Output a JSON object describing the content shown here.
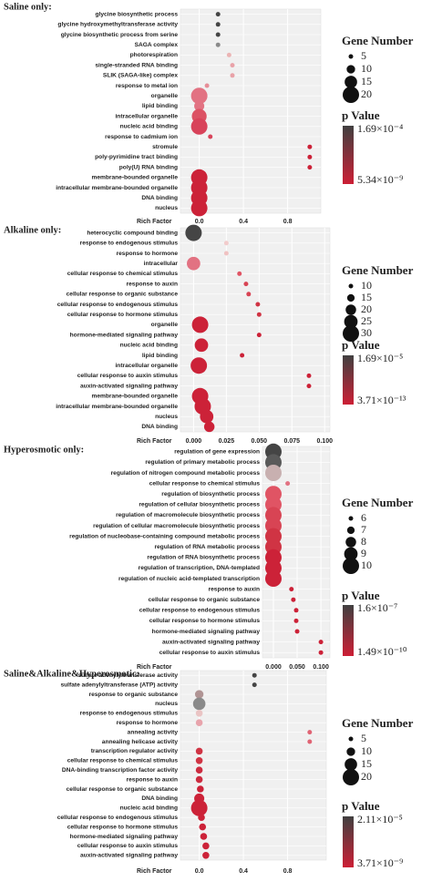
{
  "chart_data": [
    {
      "type": "scatter",
      "title": "Saline only:",
      "categories": [
        "glycine biosynthetic process",
        "glycine hydroxymethyltransferase activity",
        "glycine biosynthetic process from serine",
        "SAGA complex",
        "photorespiration",
        "single-stranded RNA binding",
        "SLIK (SAGA-like) complex",
        "response to metal ion",
        "organelle",
        "lipid binding",
        "intracellular organelle",
        "nucleic acid binding",
        "response to cadmium ion",
        "stromule",
        "poly-pyrimidine tract binding",
        "poly(U) RNA binding",
        "membrane-bounded organelle",
        "intracellular membrane-bounded organelle",
        "DNA binding",
        "nucleus"
      ],
      "values": [
        0.17,
        0.17,
        0.17,
        0.17,
        0.27,
        0.3,
        0.3,
        0.07,
        0.0,
        0.0,
        0.0,
        0.0,
        0.1,
        1.0,
        1.0,
        1.0,
        0.0,
        0.0,
        0.0,
        0.0
      ],
      "sizes": [
        5,
        5,
        5,
        5,
        5,
        5,
        5,
        5,
        20,
        12,
        18,
        20,
        5,
        5,
        5,
        5,
        20,
        20,
        20,
        20
      ],
      "colors": [
        "#454545",
        "#454545",
        "#454545",
        "#8a8a8a",
        "#ebb4b4",
        "#e9a2a8",
        "#e9a2a8",
        "#e68e98",
        "#e27282",
        "#e27282",
        "#dc5264",
        "#d8435a",
        "#d8435a",
        "#cc2238",
        "#cc2238",
        "#cc2238",
        "#cc2238",
        "#cc2238",
        "#cc2238",
        "#cc2238"
      ],
      "x_label": "Rich Factor",
      "xlim": [
        -0.17,
        1.1
      ],
      "xticks": [
        {
          "value": 0.0,
          "label": "0.0"
        },
        0.4,
        0.8
      ],
      "grid": true,
      "size_legend": {
        "title": "Gene Number",
        "values": [
          5,
          10,
          15,
          20
        ]
      },
      "color_legend": {
        "title": "p Value",
        "labels": [
          "1.69×10⁻⁴",
          "5.34×10⁻⁹"
        ],
        "colors": [
          "#404040",
          "#cc1f35"
        ]
      }
    },
    {
      "type": "scatter",
      "title": "Alkaline only:",
      "categories": [
        "heterocyclic compound binding",
        "response to endogenous stimulus",
        "response to hormone",
        "intracellular",
        "cellular response to chemical stimulus",
        "response to auxin",
        "cellular response to organic substance",
        "cellular response to endogenous stimulus",
        "cellular response to hormone stimulus",
        "organelle",
        "hormone-mediated signaling pathway",
        "nucleic acid binding",
        "lipid binding",
        "intracellular organelle",
        "cellular response to auxin stimulus",
        "auxin-activated signaling pathway",
        "membrane-bounded organelle",
        "intracellular membrane-bounded organelle",
        "nucleus",
        "DNA binding"
      ],
      "values": [
        0.0,
        0.025,
        0.025,
        0.0,
        0.035,
        0.04,
        0.042,
        0.049,
        0.05,
        0.005,
        0.05,
        0.006,
        0.037,
        0.004,
        0.088,
        0.088,
        0.005,
        0.007,
        0.01,
        0.012
      ],
      "sizes": [
        30,
        10,
        10,
        25,
        10,
        10,
        10,
        10,
        10,
        30,
        10,
        25,
        10,
        30,
        10,
        10,
        30,
        30,
        25,
        20
      ],
      "colors": [
        "#454545",
        "#f2cccc",
        "#f0c2c2",
        "#e27282",
        "#e05464",
        "#d84454",
        "#d84454",
        "#d03444",
        "#d03444",
        "#cc2238",
        "#cc2238",
        "#cc2238",
        "#cc2238",
        "#cc2238",
        "#cc2238",
        "#cc2238",
        "#cc2238",
        "#cc2238",
        "#cc2238",
        "#cc2238"
      ],
      "x_label": "Rich Factor",
      "xlim": [
        -0.01,
        0.104
      ],
      "xticks": [
        {
          "value": 0.0,
          "label": "0.000"
        },
        0.025,
        {
          "value": 0.05,
          "label": "0.050"
        },
        0.075,
        {
          "value": 0.1,
          "label": "0.100"
        }
      ],
      "grid": true,
      "size_legend": {
        "title": "Gene Number",
        "values": [
          10,
          15,
          20,
          25,
          30
        ]
      },
      "color_legend": {
        "title": "p Value",
        "labels": [
          "1.69×10⁻⁵",
          "3.71×10⁻¹³"
        ],
        "colors": [
          "#404040",
          "#cc1f35"
        ]
      }
    },
    {
      "type": "scatter",
      "title": "Hyperosmotic only:",
      "categories": [
        "regulation of gene expression",
        "regulation of primary metabolic process",
        "regulation of nitrogen compound metabolic process",
        "cellular response to chemical stimulus",
        "regulation of biosynthetic process",
        "regulation of cellular biosynthetic process",
        "regulation of macromolecule biosynthetic process",
        "regulation of cellular macromolecule biosynthetic process",
        "regulation of nucleobase-containing compound metabolic process",
        "regulation of RNA metabolic process",
        "regulation of RNA biosynthetic process",
        "regulation of transcription, DNA-templated",
        "regulation of nucleic acid-templated transcription",
        "response to auxin",
        "cellular response to organic substance",
        "cellular response to endogenous stimulus",
        "cellular response to hormone stimulus",
        "hormone-mediated signaling pathway",
        "auxin-activated signaling pathway",
        "cellular response to auxin stimulus"
      ],
      "values": [
        0.0,
        0.0,
        0.0,
        0.03,
        0.0,
        0.0,
        0.0,
        0.0,
        0.0,
        0.0,
        0.0,
        0.0,
        0.0,
        0.038,
        0.042,
        0.048,
        0.048,
        0.05,
        0.1,
        0.1
      ],
      "sizes": [
        10,
        10,
        10,
        6,
        10,
        10,
        10,
        10,
        10,
        10,
        10,
        10,
        10,
        6,
        6,
        6,
        6,
        6,
        6,
        6
      ],
      "colors": [
        "#454545",
        "#5a5a5a",
        "#c8b0b0",
        "#e27282",
        "#e05464",
        "#e05464",
        "#d84454",
        "#d84454",
        "#d03444",
        "#d03444",
        "#cc2238",
        "#cc2238",
        "#cc2238",
        "#cc2238",
        "#cc2238",
        "#cc2238",
        "#cc2238",
        "#cc2238",
        "#cc2238",
        "#cc2238"
      ],
      "x_label": "Rich Factor",
      "xlim": [
        -0.023,
        0.119
      ],
      "xticks": [
        {
          "value": 0.0,
          "label": "0.000"
        },
        {
          "value": 0.05,
          "label": "0.050"
        },
        {
          "value": 0.1,
          "label": "0.100"
        }
      ],
      "grid": true,
      "size_legend": {
        "title": "Gene Number",
        "values": [
          6,
          7,
          8,
          9,
          10
        ]
      },
      "color_legend": {
        "title": "p Value",
        "labels": [
          "1.6×10⁻⁷",
          "1.49×10⁻¹⁰"
        ],
        "colors": [
          "#404040",
          "#cc1f35"
        ]
      }
    },
    {
      "type": "scatter",
      "title": "Saline&Alkaline&Hyperosmotic:",
      "categories": [
        "sulfate adenylyltransferase activity",
        "sulfate adenylyltransferase (ATP) activity",
        "response to organic substance",
        "nucleus",
        "response to endogenous stimulus",
        "response to hormone",
        "annealing activity",
        "annealing helicase activity",
        "transcription regulator activity",
        "cellular response to chemical stimulus",
        "DNA-binding transcription factor activity",
        "response to auxin",
        "cellular response to organic substance",
        "DNA binding",
        "nucleic acid binding",
        "cellular response to endogenous stimulus",
        "cellular response to hormone stimulus",
        "hormone-mediated signaling pathway",
        "cellular response to auxin stimulus",
        "auxin-activated signaling pathway"
      ],
      "values": [
        0.5,
        0.5,
        0.0,
        0.0,
        0.0,
        0.0,
        1.0,
        1.0,
        0.0,
        0.0,
        0.0,
        0.0,
        0.01,
        0.0,
        0.0,
        0.02,
        0.03,
        0.04,
        0.06,
        0.06
      ],
      "sizes": [
        5,
        5,
        10,
        15,
        8,
        8,
        5,
        5,
        8,
        8,
        8,
        8,
        8,
        12,
        20,
        8,
        8,
        8,
        8,
        8
      ],
      "colors": [
        "#454545",
        "#454545",
        "#b09494",
        "#8a8a8a",
        "#eac4c4",
        "#e8a4ac",
        "#e06474",
        "#e06474",
        "#d03444",
        "#d03444",
        "#cc2c40",
        "#cc2c40",
        "#cc2238",
        "#cc2238",
        "#cc2238",
        "#cc2238",
        "#cc2238",
        "#cc2238",
        "#cc2238",
        "#cc2238"
      ],
      "x_label": "Rich Factor",
      "xlim": [
        -0.17,
        1.15
      ],
      "xticks": [
        {
          "value": 0.0,
          "label": "0.0"
        },
        0.4,
        0.8
      ],
      "grid": true,
      "size_legend": {
        "title": "Gene Number",
        "values": [
          5,
          10,
          15,
          20
        ]
      },
      "color_legend": {
        "title": "p Value",
        "labels": [
          "2.11×10⁻⁵",
          "3.71×10⁻⁹"
        ],
        "colors": [
          "#404040",
          "#cc1f35"
        ]
      }
    }
  ]
}
